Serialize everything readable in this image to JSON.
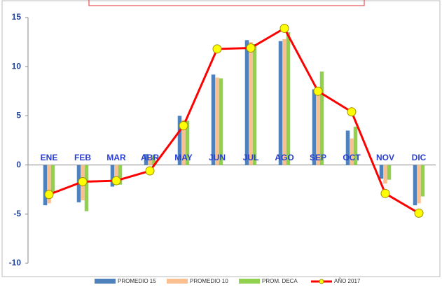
{
  "chart_data": {
    "type": "bar_line",
    "categories": [
      "ENE",
      "FEB",
      "MAR",
      "ABR",
      "MAY",
      "JUN",
      "JUL",
      "AGO",
      "SEP",
      "OCT",
      "NOV",
      "DIC"
    ],
    "series": [
      {
        "name": "PROMEDIO 15",
        "color": "#4f81bd",
        "type": "bar",
        "values": [
          -4.1,
          -3.8,
          -2.2,
          1.1,
          5.0,
          9.2,
          12.7,
          12.6,
          7.7,
          3.5,
          -1.4,
          -4.1
        ]
      },
      {
        "name": "PROMEDIO 10",
        "color": "#fac090",
        "type": "bar",
        "values": [
          -3.9,
          -3.6,
          -1.8,
          0.8,
          4.6,
          8.9,
          12.5,
          12.8,
          7.5,
          2.7,
          -1.9,
          -3.9
        ]
      },
      {
        "name": "PROM. DECA",
        "color": "#92d050",
        "type": "bar",
        "values": [
          -2.8,
          -4.7,
          -2.0,
          1.0,
          4.5,
          8.8,
          12.3,
          13.5,
          9.5,
          3.9,
          -1.5,
          -3.2
        ]
      },
      {
        "name": "AÑO 2017",
        "color": "#ff0000",
        "type": "line",
        "marker_color": "#ffff00",
        "values": [
          -3.0,
          -1.7,
          -1.6,
          -0.6,
          4.0,
          11.8,
          11.9,
          13.9,
          7.5,
          5.4,
          -2.9,
          -4.9
        ]
      }
    ],
    "ylim": [
      -10,
      15
    ],
    "yticks": [
      -10,
      -5,
      0,
      5,
      10,
      15
    ],
    "grid": false
  }
}
